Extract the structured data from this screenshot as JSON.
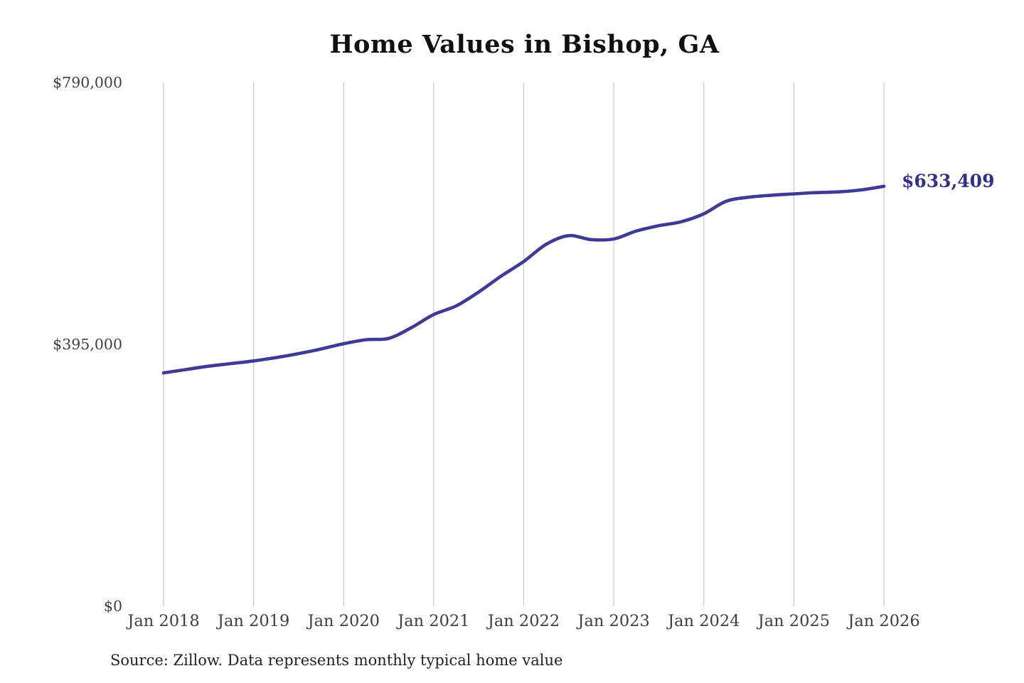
{
  "title": "Home Values in Bishop, GA",
  "source_note": "Source: Zillow. Data represents monthly typical home value",
  "colors": {
    "background": "#ffffff",
    "line": "#3e3a96",
    "annotation_text": "#32308e",
    "gridline": "#c9c9c9",
    "axis_text": "#3f3f3f",
    "title_text": "#111111",
    "source_text": "#222222"
  },
  "chart_data": {
    "type": "line",
    "title": "Home Values in Bishop, GA",
    "xlabel": "",
    "ylabel": "",
    "ylim": [
      0,
      790000
    ],
    "xlim_years": [
      2018,
      2026
    ],
    "grid": "vertical-only",
    "legend": "none",
    "x_ticks": [
      "Jan 2018",
      "Jan 2019",
      "Jan 2020",
      "Jan 2021",
      "Jan 2022",
      "Jan 2023",
      "Jan 2024",
      "Jan 2025",
      "Jan 2026"
    ],
    "y_ticks": [
      {
        "label": "$0",
        "value": 0
      },
      {
        "label": "$395,000",
        "value": 395000
      },
      {
        "label": "$790,000",
        "value": 790000
      }
    ],
    "annotation": {
      "text": "$633,409",
      "at_date": "Jan 2026",
      "value": 633409
    },
    "series": [
      {
        "name": "Monthly typical home value",
        "points": [
          {
            "date": "Jan 2018",
            "value": 352000
          },
          {
            "date": "Apr 2018",
            "value": 357000
          },
          {
            "date": "Jul 2018",
            "value": 362000
          },
          {
            "date": "Oct 2018",
            "value": 366000
          },
          {
            "date": "Jan 2019",
            "value": 370000
          },
          {
            "date": "Apr 2019",
            "value": 375000
          },
          {
            "date": "Jul 2019",
            "value": 381000
          },
          {
            "date": "Oct 2019",
            "value": 388000
          },
          {
            "date": "Jan 2020",
            "value": 396000
          },
          {
            "date": "Apr 2020",
            "value": 402000
          },
          {
            "date": "Jul 2020",
            "value": 404000
          },
          {
            "date": "Oct 2020",
            "value": 420000
          },
          {
            "date": "Jan 2021",
            "value": 440000
          },
          {
            "date": "Apr 2021",
            "value": 453000
          },
          {
            "date": "Jul 2021",
            "value": 474000
          },
          {
            "date": "Oct 2021",
            "value": 498000
          },
          {
            "date": "Jan 2022",
            "value": 520000
          },
          {
            "date": "Apr 2022",
            "value": 546000
          },
          {
            "date": "Jul 2022",
            "value": 559000
          },
          {
            "date": "Oct 2022",
            "value": 553000
          },
          {
            "date": "Jan 2023",
            "value": 554000
          },
          {
            "date": "Apr 2023",
            "value": 566000
          },
          {
            "date": "Jul 2023",
            "value": 574000
          },
          {
            "date": "Oct 2023",
            "value": 580000
          },
          {
            "date": "Jan 2024",
            "value": 592000
          },
          {
            "date": "Apr 2024",
            "value": 611000
          },
          {
            "date": "Jul 2024",
            "value": 617000
          },
          {
            "date": "Oct 2024",
            "value": 620000
          },
          {
            "date": "Jan 2025",
            "value": 622000
          },
          {
            "date": "Apr 2025",
            "value": 624000
          },
          {
            "date": "Jul 2025",
            "value": 625000
          },
          {
            "date": "Oct 2025",
            "value": 628000
          },
          {
            "date": "Jan 2026",
            "value": 633409
          }
        ]
      }
    ]
  }
}
